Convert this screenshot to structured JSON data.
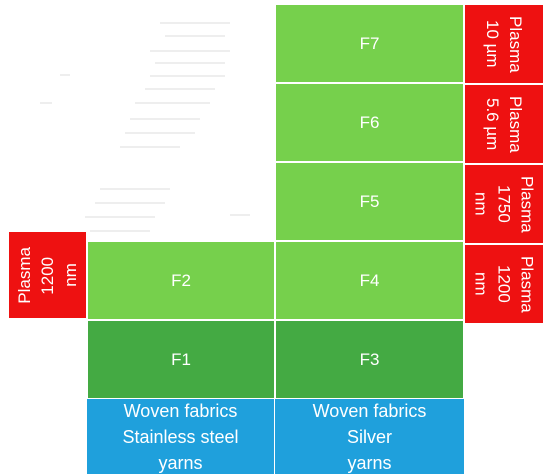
{
  "fabrics": {
    "F1": "F1",
    "F2": "F2",
    "F3": "F3",
    "F4": "F4",
    "F5": "F5",
    "F6": "F6",
    "F7": "F7"
  },
  "base": {
    "left": [
      "Woven fabrics",
      "Stainless steel",
      "yarns"
    ],
    "right": [
      "Woven fabrics",
      "Silver",
      "yarns"
    ]
  },
  "plasma": {
    "left_1200": "Plasma\n1200\nnm",
    "right_10um": "Plasma\n10 µm",
    "right_5_6um": "Plasma\n5.6 µm",
    "right_1750": "Plasma\n1750\nnm",
    "right_1200": "Plasma\n1200\nnm"
  },
  "colors": {
    "light_green": "#76d04c",
    "dark_green": "#44aa43",
    "blue": "#1fa0dc",
    "red": "#ee1111"
  }
}
